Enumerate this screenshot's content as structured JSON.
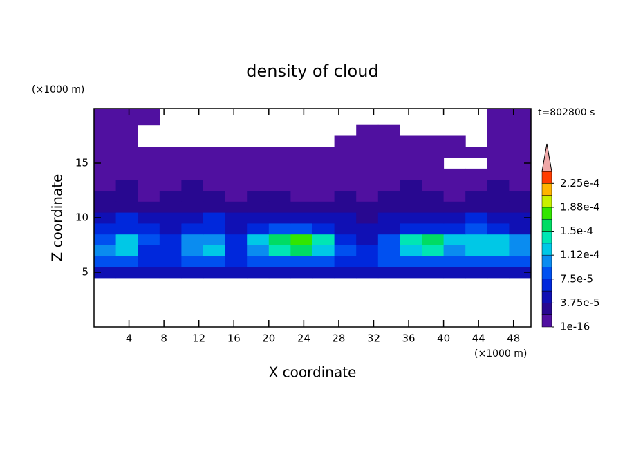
{
  "chart_data": {
    "type": "contour",
    "title": "density of cloud",
    "x_label": "X coordinate",
    "y_label": "Z coordinate",
    "x_unit": "(×1000 m)",
    "y_unit": "(×1000 m)",
    "annotation": "t=802800 s",
    "xlim": [
      0,
      50
    ],
    "ylim": [
      0,
      20
    ],
    "xticks": [
      4,
      8,
      12,
      16,
      20,
      24,
      28,
      32,
      36,
      40,
      44,
      48
    ],
    "yticks": [
      5,
      10,
      15
    ],
    "x_edges": [
      0,
      2.5,
      5,
      7.5,
      10,
      12.5,
      15,
      17.5,
      20,
      22.5,
      25,
      27.5,
      30,
      32.5,
      35,
      37.5,
      40,
      42.5,
      45,
      47.5,
      50
    ],
    "y_edges": [
      4.5,
      5.5,
      6.5,
      7.5,
      8.5,
      9.5,
      10.5,
      11.5,
      12.5,
      13.5,
      14.5,
      15.5,
      16.5,
      17.5,
      18.5,
      20
    ],
    "z": [
      [
        4e-05,
        4e-05,
        4e-05,
        4e-05,
        4e-05,
        4e-05,
        4e-05,
        4e-05,
        4e-05,
        4e-05,
        4e-05,
        4e-05,
        4e-05,
        4e-05,
        4e-05,
        4e-05,
        4e-05,
        4e-05,
        4e-05,
        4e-05
      ],
      [
        8e-05,
        8e-05,
        6e-05,
        6e-05,
        8e-05,
        8e-05,
        6e-05,
        8e-05,
        9e-05,
        9e-05,
        8e-05,
        6e-05,
        6e-05,
        8e-05,
        8e-05,
        9e-05,
        8e-05,
        8e-05,
        9e-05,
        8e-05
      ],
      [
        0.0001,
        0.00012,
        7e-05,
        6e-05,
        0.00011,
        0.00012,
        7e-05,
        0.00011,
        0.00014,
        0.00015,
        0.00013,
        8e-05,
        6e-05,
        9e-05,
        0.00013,
        0.00014,
        0.0001,
        0.00012,
        0.00013,
        0.00011
      ],
      [
        9e-05,
        0.00013,
        8e-05,
        6e-05,
        0.0001,
        0.00011,
        7e-05,
        0.00012,
        0.00016,
        0.00017,
        0.00014,
        7e-05,
        5e-05,
        8e-05,
        0.00014,
        0.00016,
        0.00012,
        0.00012,
        0.00012,
        0.0001
      ],
      [
        7e-05,
        7e-05,
        6e-05,
        5e-05,
        7e-05,
        7e-05,
        5e-05,
        6e-05,
        8e-05,
        8e-05,
        6e-05,
        4e-05,
        4e-05,
        5e-05,
        6e-05,
        7e-05,
        6e-05,
        8e-05,
        6e-05,
        5e-05
      ],
      [
        4e-05,
        6e-05,
        4e-05,
        4e-05,
        4e-05,
        6e-05,
        4e-05,
        4e-05,
        4e-05,
        4e-05,
        4e-05,
        4e-05,
        3e-05,
        4e-05,
        4e-05,
        4e-05,
        4e-05,
        6e-05,
        4e-05,
        4e-05
      ],
      [
        3e-05,
        3e-05,
        3e-05,
        2e-05,
        3e-05,
        3e-05,
        3e-05,
        2e-05,
        3e-05,
        2e-05,
        2e-05,
        3e-05,
        2e-05,
        2e-05,
        3e-05,
        3e-05,
        2e-05,
        3e-05,
        3e-05,
        2e-05
      ],
      [
        2e-05,
        2e-05,
        1e-05,
        2e-05,
        2e-05,
        2e-05,
        1e-05,
        2e-05,
        2e-05,
        1e-05,
        1e-05,
        2e-05,
        1e-05,
        2e-05,
        2e-05,
        2e-05,
        1e-05,
        2e-05,
        2e-05,
        2e-05
      ],
      [
        1e-05,
        2e-05,
        1e-05,
        1e-05,
        2e-05,
        1e-05,
        1e-05,
        1e-05,
        1e-05,
        1e-05,
        1e-05,
        1e-05,
        1e-05,
        1e-05,
        2e-05,
        1e-05,
        1e-05,
        1e-05,
        2e-05,
        1e-05
      ],
      [
        1e-06,
        1e-06,
        1e-06,
        1e-06,
        1e-06,
        1e-06,
        1e-06,
        1e-06,
        1e-06,
        1e-06,
        1e-06,
        1e-06,
        1e-06,
        1e-06,
        1e-06,
        1e-06,
        1e-06,
        1e-06,
        1e-06,
        1e-06
      ],
      [
        1e-06,
        1e-06,
        1e-06,
        1e-06,
        1e-06,
        1e-06,
        1e-06,
        1e-06,
        1e-06,
        1e-06,
        1e-06,
        1e-06,
        1e-06,
        1e-06,
        1e-06,
        1e-06,
        null,
        null,
        1e-06,
        1e-06
      ],
      [
        1e-06,
        1e-06,
        1e-06,
        1e-06,
        1e-06,
        1e-06,
        1e-06,
        1e-06,
        1e-06,
        1e-06,
        1e-06,
        1e-06,
        1e-06,
        1e-06,
        1e-06,
        1e-06,
        1e-06,
        1e-06,
        1e-06,
        1e-06
      ],
      [
        1e-06,
        1e-06,
        null,
        null,
        null,
        null,
        null,
        null,
        null,
        null,
        null,
        1e-06,
        1e-06,
        1e-06,
        1e-06,
        1e-06,
        1e-06,
        null,
        1e-06,
        1e-06
      ],
      [
        1e-06,
        1e-06,
        null,
        null,
        null,
        null,
        null,
        null,
        null,
        null,
        null,
        null,
        1e-06,
        1e-06,
        null,
        null,
        null,
        null,
        1e-06,
        1e-06
      ],
      [
        1e-06,
        1e-06,
        1e-06,
        null,
        null,
        null,
        null,
        null,
        null,
        null,
        null,
        null,
        null,
        null,
        null,
        null,
        null,
        null,
        1e-06,
        1e-06
      ]
    ],
    "colorbar": {
      "lim": [
        1e-16,
        0.00024375
      ],
      "levels": [
        1e-16,
        1.875e-05,
        3.75e-05,
        5.625e-05,
        7.5e-05,
        9.375e-05,
        0.0001125,
        0.00013125,
        0.00015,
        0.00016875,
        0.0001875,
        0.00020625,
        0.000225
      ],
      "colors": [
        "#5010a0",
        "#280890",
        "#1010b4",
        "#0028dc",
        "#0050f0",
        "#0a8cf0",
        "#00c8e6",
        "#00e6b4",
        "#00dc64",
        "#32e600",
        "#c8f000",
        "#ffb400",
        "#ff3c00"
      ],
      "over_color": "#f0a8a8",
      "ticks": [
        1e-16,
        {
          "value": 3.75e-05,
          "label": "3.75e-5"
        },
        {
          "value": 7.5e-05,
          "label": "7.5e-5"
        },
        {
          "value": 0.0001125,
          "label": "1.12e-4"
        },
        {
          "value": 0.00015,
          "label": "1.5e-4"
        },
        {
          "value": 0.0001875,
          "label": "1.88e-4"
        },
        {
          "value": 0.000225,
          "label": "2.25e-4"
        }
      ]
    }
  }
}
